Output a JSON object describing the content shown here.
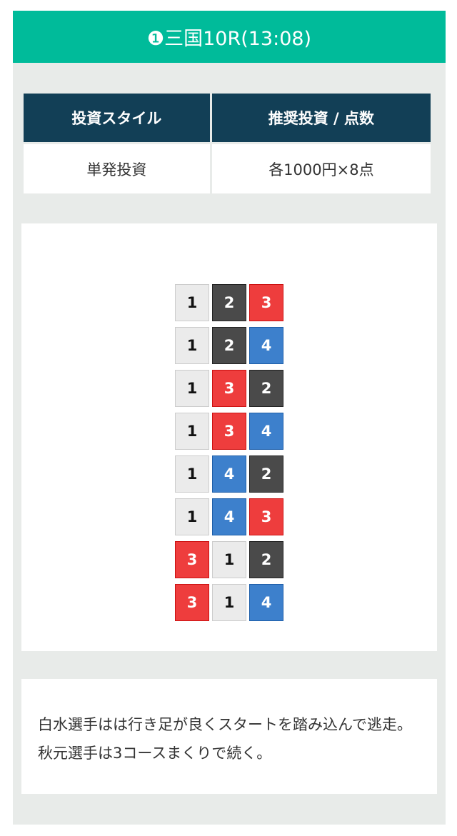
{
  "title": "❶三国10R(13:08)",
  "table": {
    "headers": [
      "投資スタイル",
      "推奨投資 / 点数"
    ],
    "values": [
      "単発投資",
      "各1000円×8点"
    ]
  },
  "boat_colors": {
    "1": "#ebebeb",
    "2": "#4a4a4a",
    "3": "#ee3d3d",
    "4": "#3d80cc"
  },
  "bets": [
    [
      "1",
      "2",
      "3"
    ],
    [
      "1",
      "2",
      "4"
    ],
    [
      "1",
      "3",
      "2"
    ],
    [
      "1",
      "3",
      "4"
    ],
    [
      "1",
      "4",
      "2"
    ],
    [
      "1",
      "4",
      "3"
    ],
    [
      "3",
      "1",
      "2"
    ],
    [
      "3",
      "1",
      "4"
    ]
  ],
  "comment": "白水選手はは行き足が良くスタートを踏み込んで逃走。秋元選手は3コースまくりで続く。"
}
